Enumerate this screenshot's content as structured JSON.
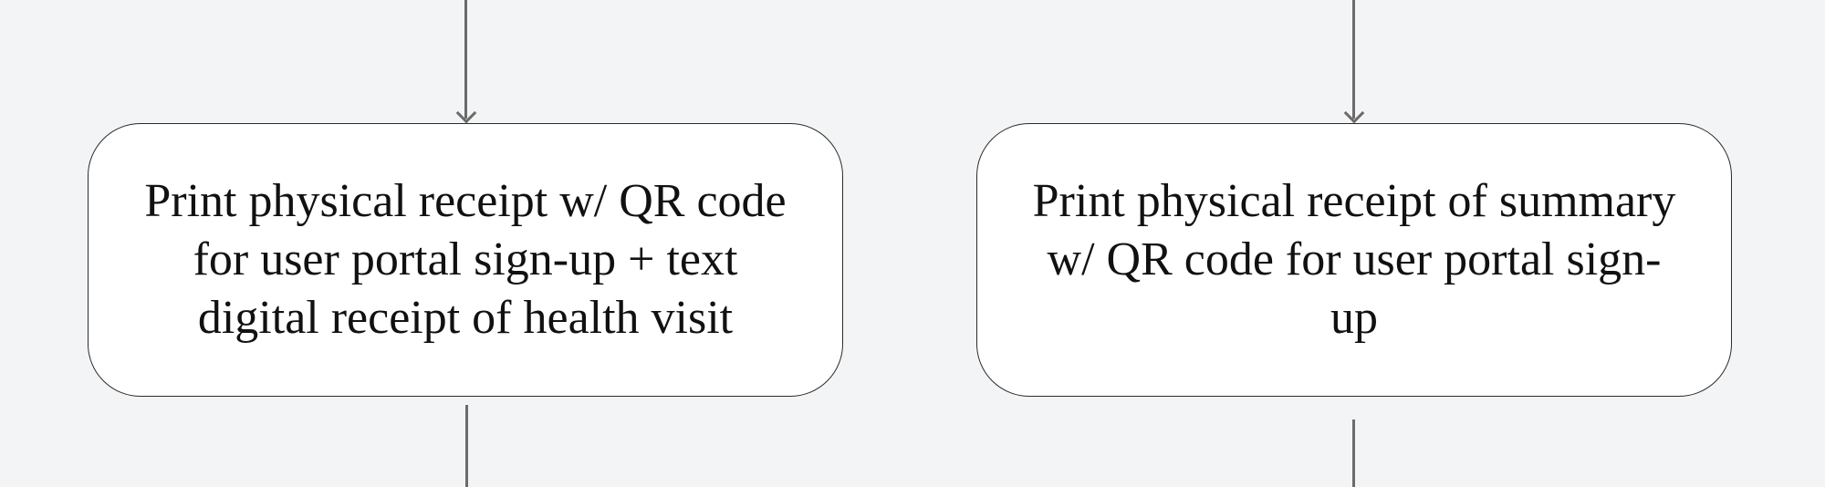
{
  "diagram": {
    "nodes": [
      {
        "id": "left",
        "text": "Print physical receipt w/ QR code for user portal sign-up + text digital receipt of health visit"
      },
      {
        "id": "right",
        "text": "Print physical receipt of summary w/ QR code for user portal sign-up"
      }
    ],
    "colors": {
      "background": "#f3f4f5",
      "node_fill": "#ffffff",
      "node_border": "#2b2b2b",
      "connector": "#6b6b6b",
      "text": "#111111"
    }
  }
}
